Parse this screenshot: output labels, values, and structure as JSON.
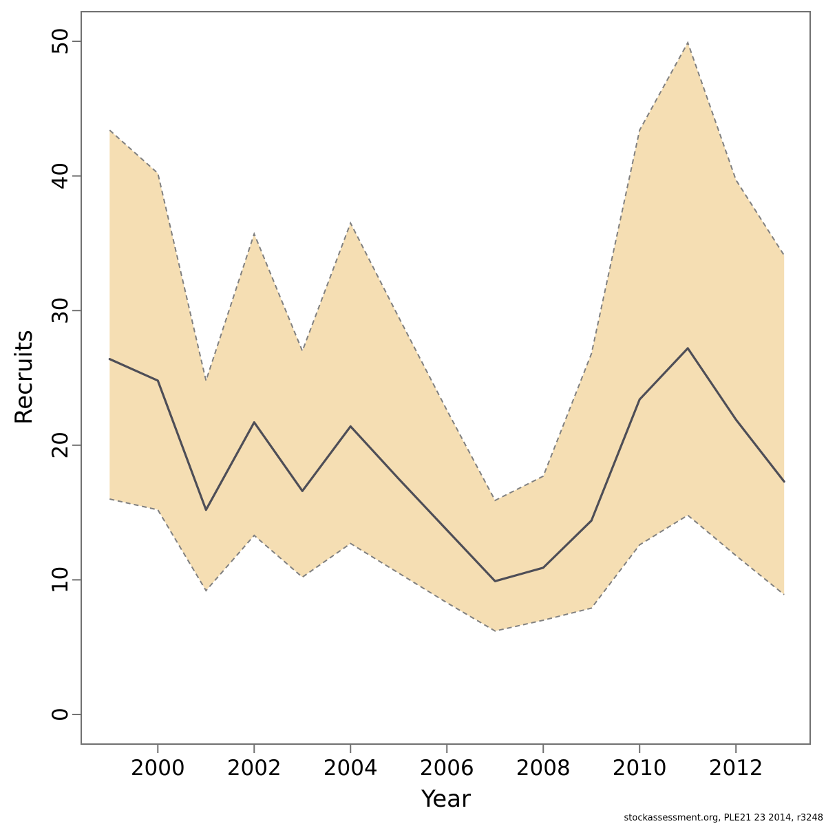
{
  "figure": {
    "footer": "stockassessment.org, PLE21 23 2014, r3248"
  },
  "chart_data": {
    "type": "line",
    "title": "",
    "xlabel": "Year",
    "ylabel": "Recruits",
    "x": [
      1999,
      2000,
      2001,
      2002,
      2003,
      2004,
      2005,
      2006,
      2007,
      2008,
      2009,
      2010,
      2011,
      2012,
      2013
    ],
    "series": [
      {
        "name": "recruits",
        "values": [
          26.4,
          24.8,
          15.2,
          21.7,
          16.6,
          21.4,
          17.5,
          13.7,
          9.9,
          10.9,
          14.4,
          23.4,
          27.2,
          21.9,
          17.3
        ]
      },
      {
        "name": "ci-lower",
        "values": [
          16.0,
          15.2,
          9.2,
          13.3,
          10.2,
          12.7,
          10.5,
          8.3,
          6.2,
          7.0,
          7.9,
          12.6,
          14.8,
          11.8,
          8.9
        ]
      },
      {
        "name": "ci-upper",
        "values": [
          43.4,
          40.2,
          24.8,
          35.7,
          27.0,
          36.5,
          29.5,
          22.6,
          15.9,
          17.7,
          26.8,
          43.4,
          49.9,
          39.7,
          34.1
        ]
      }
    ],
    "xticks": [
      2000,
      2002,
      2004,
      2006,
      2008,
      2010,
      2012
    ],
    "yticks": [
      0,
      10,
      20,
      30,
      40,
      50
    ],
    "xlim": [
      1998.41,
      2013.54
    ],
    "ylim": [
      -2.2,
      52.2
    ],
    "grid": false,
    "legend": null,
    "band_fill": "#f5deb3",
    "band_edge_color": "#808080",
    "line_color": "#4e4e57",
    "axis_color": "#707070",
    "text_color": "#000000"
  }
}
